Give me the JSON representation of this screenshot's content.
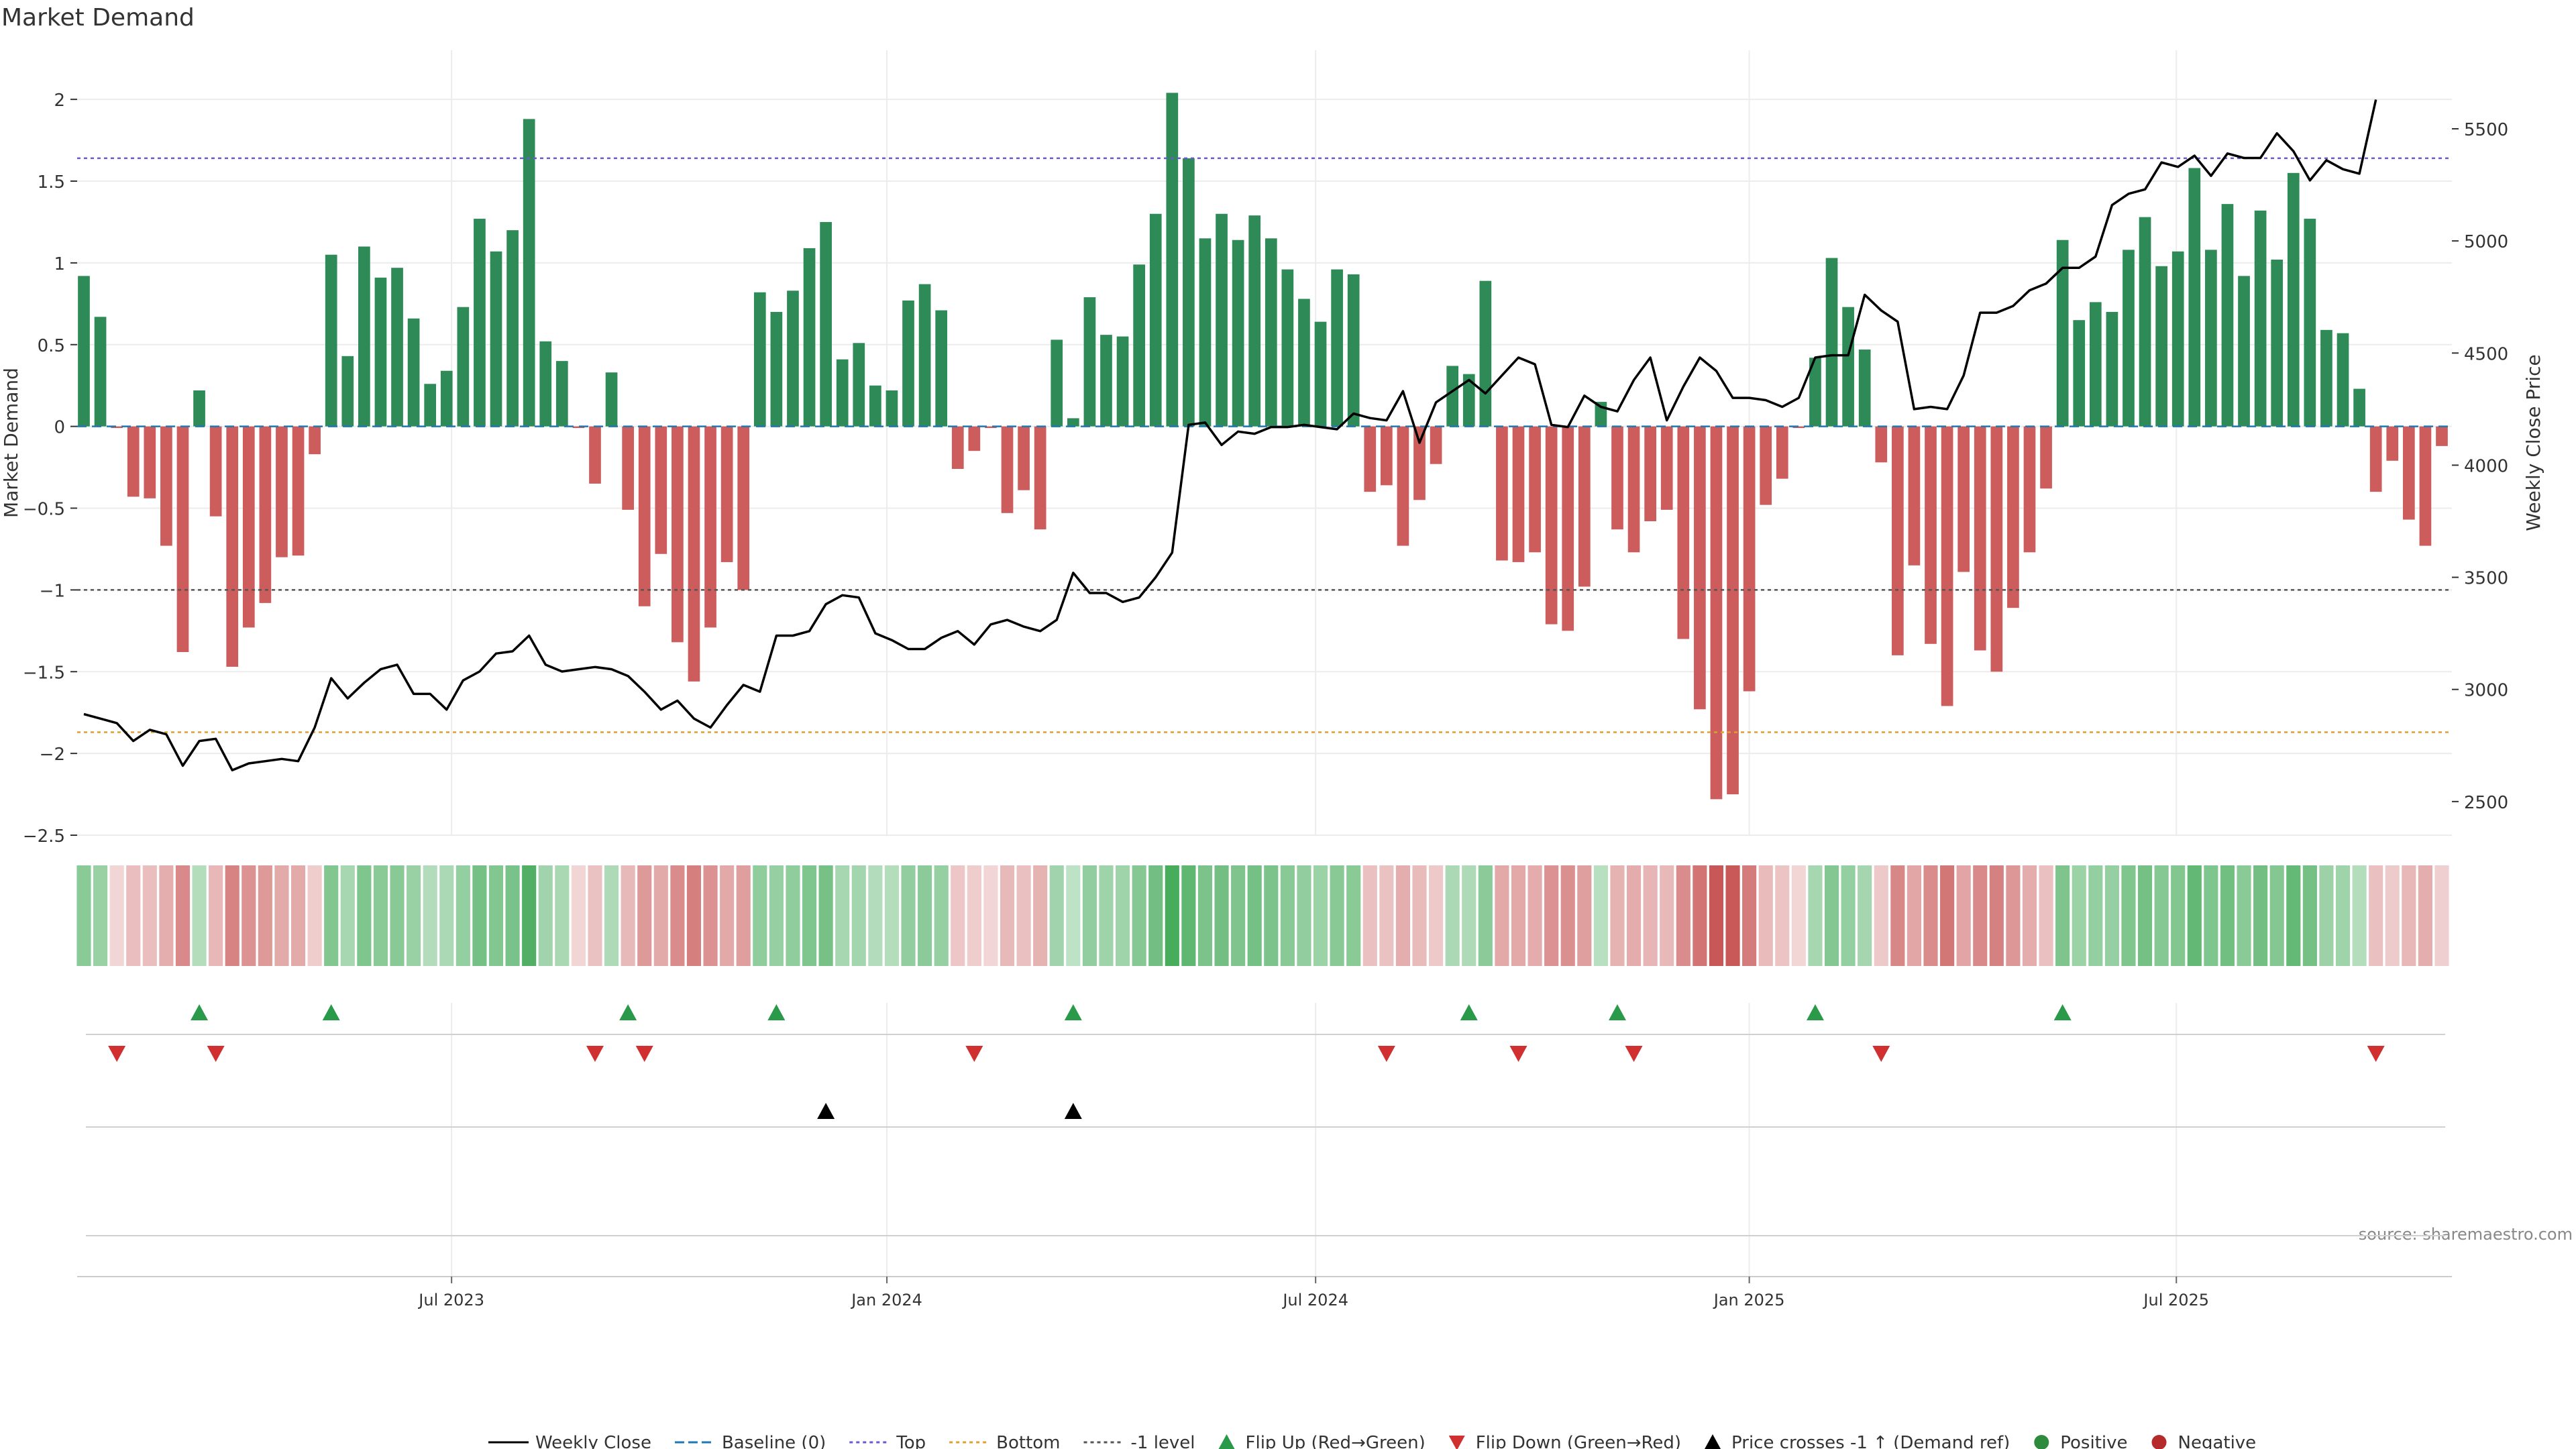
{
  "chart_data": {
    "type": "bar+line",
    "title": "Market Demand",
    "ylabel": "Market Demand",
    "y2label": "Weekly Close Price",
    "source": "source: sharemaestro.com",
    "ylim": [
      -2.5,
      2.3
    ],
    "y2lim": [
      2350,
      5850
    ],
    "yticks": [
      2,
      1.5,
      1,
      0.5,
      0,
      -0.5,
      -1,
      -1.5,
      -2,
      -2.5
    ],
    "ytick_labels": [
      "2",
      "1.5",
      "1",
      "0.5",
      "0",
      "−0.5",
      "−1",
      "−1.5",
      "−2",
      "−2.5"
    ],
    "y2ticks": [
      5500,
      5000,
      4500,
      4000,
      3500,
      3000,
      2500
    ],
    "y2tick_labels": [
      "5500",
      "5000",
      "4500",
      "4000",
      "3500",
      "3000",
      "2500"
    ],
    "xticks": [
      {
        "week": 22.3,
        "label": "Jul 2023"
      },
      {
        "week": 48.7,
        "label": "Jan 2024"
      },
      {
        "week": 74.7,
        "label": "Jul 2024"
      },
      {
        "week": 101.0,
        "label": "Jan 2025"
      },
      {
        "week": 126.9,
        "label": "Jul 2025"
      }
    ],
    "levels": {
      "top": 1.64,
      "bottom": -1.87,
      "minus_one": -1.0
    },
    "demand": [
      0.92,
      0.67,
      -0.01,
      -0.43,
      -0.44,
      -0.73,
      -1.38,
      0.22,
      -0.55,
      -1.47,
      -1.23,
      -1.08,
      -0.8,
      -0.79,
      -0.17,
      1.05,
      0.43,
      1.1,
      0.91,
      0.97,
      0.66,
      0.26,
      0.34,
      0.73,
      1.27,
      1.07,
      1.2,
      1.88,
      0.52,
      0.4,
      -0.01,
      -0.35,
      0.33,
      -0.51,
      -1.1,
      -0.78,
      -1.32,
      -1.56,
      -1.23,
      -0.83,
      -1.0,
      0.82,
      0.7,
      0.83,
      1.09,
      1.25,
      0.41,
      0.51,
      0.25,
      0.22,
      0.77,
      0.87,
      0.71,
      -0.26,
      -0.15,
      -0.01,
      -0.53,
      -0.39,
      -0.63,
      0.53,
      0.05,
      0.79,
      0.56,
      0.55,
      0.99,
      1.3,
      2.04,
      1.64,
      1.15,
      1.3,
      1.14,
      1.29,
      1.15,
      0.96,
      0.78,
      0.64,
      0.96,
      0.93,
      -0.4,
      -0.36,
      -0.73,
      -0.45,
      -0.23,
      0.37,
      0.32,
      0.89,
      -0.82,
      -0.83,
      -0.77,
      -1.21,
      -1.25,
      -0.98,
      0.15,
      -0.63,
      -0.77,
      -0.58,
      -0.51,
      -1.3,
      -1.73,
      -2.28,
      -2.25,
      -1.62,
      -0.48,
      -0.32,
      -0.01,
      0.42,
      1.03,
      0.73,
      0.47,
      -0.22,
      -1.4,
      -0.85,
      -1.33,
      -1.71,
      -0.89,
      -1.37,
      -1.5,
      -1.11,
      -0.77,
      -0.38,
      1.14,
      0.65,
      0.76,
      0.7,
      1.08,
      1.28,
      0.98,
      1.07,
      1.58,
      1.08,
      1.36,
      0.92,
      1.32,
      1.02,
      1.55,
      1.27,
      0.59,
      0.57,
      0.23,
      -0.4,
      -0.21,
      -0.57,
      -0.73,
      -0.12
    ],
    "close": [
      2890,
      2870,
      2850,
      2770,
      2820,
      2800,
      2660,
      2770,
      2780,
      2640,
      2670,
      2680,
      2690,
      2680,
      2830,
      3050,
      2960,
      3030,
      3090,
      3110,
      2980,
      2980,
      2910,
      3040,
      3080,
      3160,
      3170,
      3240,
      3110,
      3080,
      3090,
      3100,
      3090,
      3060,
      2990,
      2910,
      2950,
      2870,
      2830,
      2930,
      3020,
      2990,
      3240,
      3240,
      3260,
      3380,
      3420,
      3410,
      3250,
      3220,
      3180,
      3180,
      3230,
      3260,
      3200,
      3290,
      3310,
      3280,
      3260,
      3310,
      3520,
      3430,
      3430,
      3390,
      3410,
      3500,
      3610,
      4180,
      4190,
      4090,
      4150,
      4140,
      4170,
      4170,
      4180,
      4170,
      4160,
      4230,
      4210,
      4200,
      4330,
      4100,
      4280,
      4330,
      4380,
      4320,
      4400,
      4480,
      4450,
      4180,
      4170,
      4310,
      4260,
      4240,
      4380,
      4480,
      4200,
      4350,
      4480,
      4420,
      4300,
      4300,
      4290,
      4260,
      4300,
      4480,
      4490,
      4490,
      4760,
      4690,
      4640,
      4250,
      4260,
      4250,
      4400,
      4680,
      4680,
      4710,
      4780,
      4810,
      4880,
      4880,
      4930,
      5160,
      5210,
      5230,
      5350,
      5330,
      5380,
      5290,
      5390,
      5370,
      5370,
      5480,
      5400,
      5270,
      5360,
      5320,
      5300,
      5630
    ],
    "flip_up_weeks": [
      7,
      15,
      33,
      42,
      60,
      84,
      93,
      105,
      120
    ],
    "flip_down_weeks": [
      2,
      8,
      31,
      34,
      54,
      79,
      87,
      94,
      109,
      139
    ],
    "price_cross_weeks": [
      45,
      60
    ],
    "legend": [
      {
        "key": "weekly_close",
        "label": "Weekly Close",
        "color": "#000000"
      },
      {
        "key": "baseline",
        "label": "Baseline (0)",
        "color": "#1f77b4"
      },
      {
        "key": "top",
        "label": "Top",
        "color": "#6a5acd"
      },
      {
        "key": "bottom",
        "label": "Bottom",
        "color": "#e0a030"
      },
      {
        "key": "minus_one",
        "label": "-1 level",
        "color": "#555555"
      },
      {
        "key": "flip_up",
        "label": "Flip Up (Red→Green)",
        "color": "#2a9a4a"
      },
      {
        "key": "flip_down",
        "label": "Flip Down (Green→Red)",
        "color": "#d03030"
      },
      {
        "key": "price_cross",
        "label": "Price crosses -1 ↑ (Demand ref)",
        "color": "#000000"
      },
      {
        "key": "positive",
        "label": "Positive",
        "color": "#2e8b3e"
      },
      {
        "key": "negative",
        "label": "Negative",
        "color": "#b52a2a"
      }
    ],
    "colors": {
      "positive_bar": "#2e8b57",
      "negative_bar": "#cd5c5c",
      "price_line": "#000000"
    }
  }
}
